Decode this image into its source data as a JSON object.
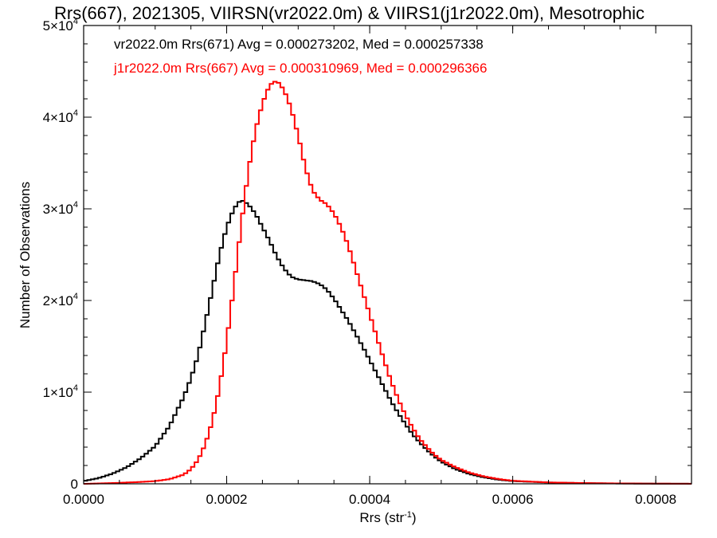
{
  "chart_data": {
    "type": "line",
    "title": "Rrs(667), 2021305, VIIRSN(vr2022.0m) & VIIRS1(j1r2022.0m), Mesotrophic",
    "xlabel": "Rrs (str",
    "xlabel_sup": "-1",
    "xlabel_close": ")",
    "ylabel": "Number of Observations",
    "xlim": [
      0.0,
      0.00085
    ],
    "ylim": [
      0,
      50000
    ],
    "x_ticks": [
      0.0,
      0.0002,
      0.0004,
      0.0006,
      0.0008
    ],
    "x_tick_labels": [
      "0.0000",
      "0.0002",
      "0.0004",
      "0.0006",
      "0.0008"
    ],
    "y_ticks": [
      0,
      10000,
      20000,
      30000,
      40000,
      50000
    ],
    "y_tick_labels": [
      {
        "mant": "0",
        "exp": ""
      },
      {
        "mant": "1×10",
        "exp": "4"
      },
      {
        "mant": "2×10",
        "exp": "4"
      },
      {
        "mant": "3×10",
        "exp": "4"
      },
      {
        "mant": "4×10",
        "exp": "4"
      },
      {
        "mant": "5×10",
        "exp": "4"
      }
    ],
    "annotations": [
      "vr2022.0m Rrs(671) Avg = 0.000273202, Med = 0.000257338",
      "j1r2022.0m Rrs(667) Avg = 0.000310969, Med = 0.000296366"
    ],
    "colors": {
      "background": "#ffffff",
      "axis": "#000000",
      "black_series": "#000000",
      "red_series": "#ff0000"
    },
    "grid": false,
    "step_style": "histogram",
    "series": [
      {
        "color": "#000000",
        "points": [
          [
            0.0,
            300
          ],
          [
            2e-05,
            600
          ],
          [
            4e-05,
            1100
          ],
          [
            6e-05,
            1800
          ],
          [
            8e-05,
            2800
          ],
          [
            0.0001,
            4100
          ],
          [
            0.00012,
            6300
          ],
          [
            0.00014,
            9500
          ],
          [
            0.00015,
            11500
          ],
          [
            0.00016,
            14000
          ],
          [
            0.00017,
            17500
          ],
          [
            0.00018,
            21200
          ],
          [
            0.00019,
            25000
          ],
          [
            0.0002,
            28000
          ],
          [
            0.00021,
            30000
          ],
          [
            0.00022,
            31000
          ],
          [
            0.00023,
            30500
          ],
          [
            0.00024,
            29500
          ],
          [
            0.00025,
            28000
          ],
          [
            0.00026,
            26500
          ],
          [
            0.00027,
            24800
          ],
          [
            0.00028,
            23500
          ],
          [
            0.00029,
            22600
          ],
          [
            0.0003,
            22300
          ],
          [
            0.00031,
            22200
          ],
          [
            0.00032,
            22100
          ],
          [
            0.00033,
            21800
          ],
          [
            0.00034,
            21200
          ],
          [
            0.00035,
            20200
          ],
          [
            0.00036,
            19000
          ],
          [
            0.00037,
            17800
          ],
          [
            0.00038,
            16400
          ],
          [
            0.00039,
            15000
          ],
          [
            0.0004,
            13500
          ],
          [
            0.00041,
            12000
          ],
          [
            0.00042,
            10500
          ],
          [
            0.00043,
            9000
          ],
          [
            0.00044,
            7700
          ],
          [
            0.00045,
            6500
          ],
          [
            0.00046,
            5400
          ],
          [
            0.00047,
            4500
          ],
          [
            0.00048,
            3700
          ],
          [
            0.00049,
            3000
          ],
          [
            0.0005,
            2400
          ],
          [
            0.00052,
            1600
          ],
          [
            0.00054,
            1050
          ],
          [
            0.00056,
            700
          ],
          [
            0.00058,
            450
          ],
          [
            0.0006,
            300
          ],
          [
            0.00065,
            140
          ],
          [
            0.0007,
            70
          ],
          [
            0.00075,
            35
          ],
          [
            0.0008,
            15
          ],
          [
            0.00085,
            5
          ]
        ]
      },
      {
        "color": "#ff0000",
        "points": [
          [
            0.0,
            0
          ],
          [
            4e-05,
            80
          ],
          [
            8e-05,
            200
          ],
          [
            0.0001,
            300
          ],
          [
            0.00012,
            500
          ],
          [
            0.00014,
            1000
          ],
          [
            0.00015,
            1600
          ],
          [
            0.00016,
            2600
          ],
          [
            0.00017,
            4300
          ],
          [
            0.00018,
            6800
          ],
          [
            0.00019,
            10500
          ],
          [
            0.0002,
            15500
          ],
          [
            0.00021,
            21500
          ],
          [
            0.00022,
            28000
          ],
          [
            0.00023,
            34000
          ],
          [
            0.00024,
            38500
          ],
          [
            0.00025,
            41500
          ],
          [
            0.00026,
            43500
          ],
          [
            0.00027,
            44000
          ],
          [
            0.00028,
            43000
          ],
          [
            0.00029,
            41000
          ],
          [
            0.0003,
            38000
          ],
          [
            0.00031,
            34500
          ],
          [
            0.00032,
            32000
          ],
          [
            0.00033,
            31000
          ],
          [
            0.00034,
            30500
          ],
          [
            0.00035,
            29500
          ],
          [
            0.00036,
            28000
          ],
          [
            0.00037,
            26000
          ],
          [
            0.00038,
            23500
          ],
          [
            0.00039,
            21000
          ],
          [
            0.0004,
            18500
          ],
          [
            0.00041,
            16000
          ],
          [
            0.00042,
            13500
          ],
          [
            0.00043,
            11200
          ],
          [
            0.00044,
            9200
          ],
          [
            0.00045,
            7500
          ],
          [
            0.00046,
            6100
          ],
          [
            0.00047,
            4900
          ],
          [
            0.00048,
            4000
          ],
          [
            0.00049,
            3200
          ],
          [
            0.0005,
            2600
          ],
          [
            0.00052,
            1800
          ],
          [
            0.00054,
            1200
          ],
          [
            0.00056,
            800
          ],
          [
            0.00058,
            520
          ],
          [
            0.0006,
            330
          ],
          [
            0.00065,
            150
          ],
          [
            0.0007,
            80
          ],
          [
            0.00075,
            40
          ],
          [
            0.0008,
            20
          ],
          [
            0.00085,
            10
          ]
        ]
      }
    ]
  }
}
